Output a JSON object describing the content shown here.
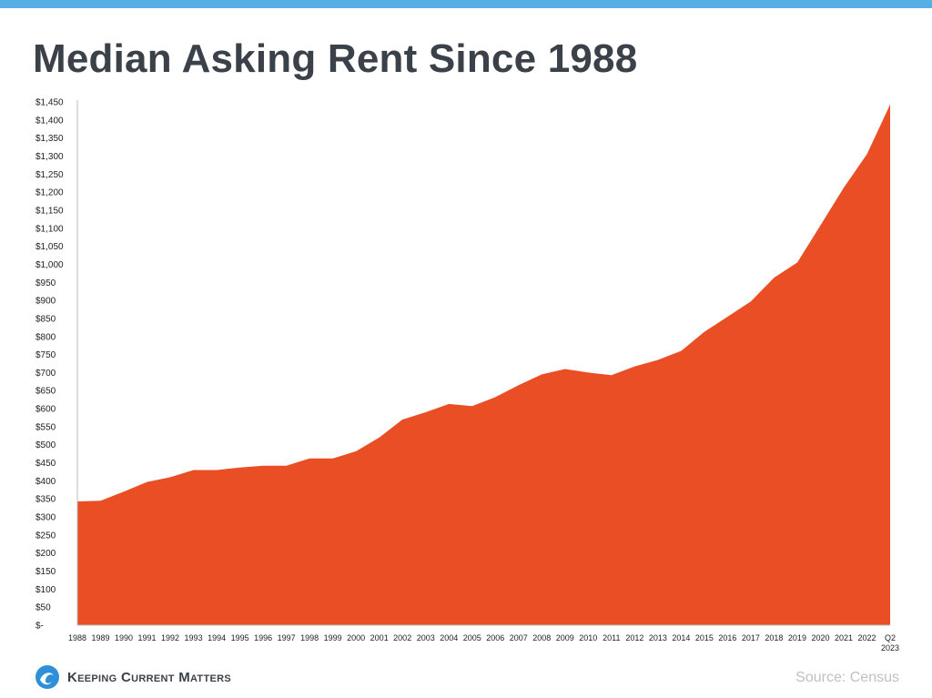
{
  "title": "Median Asking Rent Since 1988",
  "brand": {
    "name": "Keeping Current Matters",
    "logo_icon": "wave-circle-icon"
  },
  "source": "Source: Census",
  "colors": {
    "area": "#e94e24",
    "top_bar": "#5aaee6",
    "title": "#3b4149",
    "logo": "#2f8fd8",
    "source": "#c0c0c0"
  },
  "chart_data": {
    "type": "area",
    "title": "Median Asking Rent Since 1988",
    "xlabel": "",
    "ylabel": "",
    "ylim": [
      0,
      1450
    ],
    "grid": false,
    "y_ticks": [
      0,
      50,
      100,
      150,
      200,
      250,
      300,
      350,
      400,
      450,
      500,
      550,
      600,
      650,
      700,
      750,
      800,
      850,
      900,
      950,
      1000,
      1050,
      1100,
      1150,
      1200,
      1250,
      1300,
      1350,
      1400,
      1450
    ],
    "y_tick_labels": [
      "$-",
      "$50",
      "$100",
      "$150",
      "$200",
      "$250",
      "$300",
      "$350",
      "$400",
      "$450",
      "$500",
      "$550",
      "$600",
      "$650",
      "$700",
      "$750",
      "$800",
      "$850",
      "$900",
      "$950",
      "$1,000",
      "$1,050",
      "$1,100",
      "$1,150",
      "$1,200",
      "$1,250",
      "$1,300",
      "$1,350",
      "$1,400",
      "$1,450"
    ],
    "categories": [
      "1988",
      "1989",
      "1990",
      "1991",
      "1992",
      "1993",
      "1994",
      "1995",
      "1996",
      "1997",
      "1998",
      "1999",
      "2000",
      "2001",
      "2002",
      "2003",
      "2004",
      "2005",
      "2006",
      "2007",
      "2008",
      "2009",
      "2010",
      "2011",
      "2012",
      "2013",
      "2014",
      "2015",
      "2016",
      "2017",
      "2018",
      "2019",
      "2020",
      "2021",
      "2022",
      "Q2 2023"
    ],
    "values": [
      343,
      345,
      370,
      397,
      410,
      430,
      430,
      437,
      442,
      442,
      462,
      462,
      482,
      520,
      570,
      590,
      613,
      607,
      632,
      665,
      695,
      710,
      700,
      693,
      717,
      735,
      760,
      813,
      855,
      897,
      963,
      1005,
      1108,
      1212,
      1305,
      1443
    ]
  }
}
